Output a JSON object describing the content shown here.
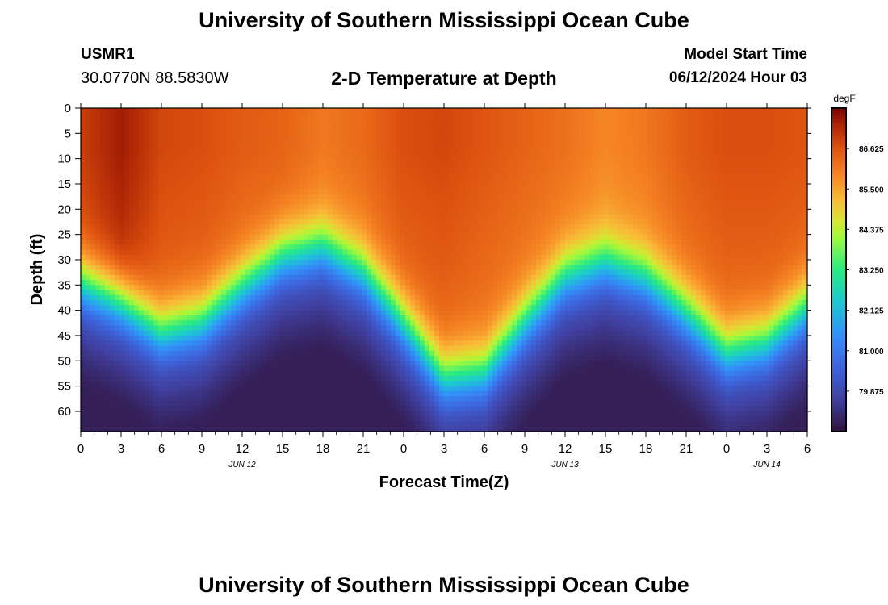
{
  "header": {
    "title": "University of Southern Mississippi Ocean Cube",
    "station_id": "USMR1",
    "coordinates": "30.0770N  88.5830W",
    "subtitle": "2-D Temperature at Depth",
    "model_start_label": "Model Start Time",
    "model_start_value": "06/12/2024 Hour 03"
  },
  "footer": {
    "title": "University of Southern Mississippi Ocean Cube"
  },
  "colors": {
    "background": "#ffffff",
    "text": "#000000"
  },
  "chart_data": {
    "type": "heatmap",
    "title": "2-D Temperature at Depth",
    "xlabel": "Forecast Time(Z)",
    "ylabel": "Depth (ft)",
    "x_range_hours": [
      0,
      54
    ],
    "y_range_ft": [
      0,
      64
    ],
    "x_tick_hours": [
      0,
      3,
      6,
      9,
      12,
      15,
      18,
      21,
      24,
      27,
      30,
      33,
      36,
      39,
      42,
      45,
      48,
      51,
      54
    ],
    "x_tick_labels": [
      "0",
      "3",
      "6",
      "9",
      "12",
      "15",
      "18",
      "21",
      "0",
      "3",
      "6",
      "9",
      "12",
      "15",
      "18",
      "21",
      "0",
      "3",
      "6"
    ],
    "y_ticks": [
      0,
      5,
      10,
      15,
      20,
      25,
      30,
      35,
      40,
      45,
      50,
      55,
      60
    ],
    "y_tick_labels": [
      "0",
      "5",
      "10",
      "15",
      "20",
      "25",
      "30",
      "35",
      "40",
      "45",
      "50",
      "55",
      "60"
    ],
    "date_labels": [
      {
        "hour": 12,
        "label": "JUN 12"
      },
      {
        "hour": 36,
        "label": "JUN 13"
      },
      {
        "hour": 51,
        "label": "JUN 14"
      }
    ],
    "colorbar": {
      "unit": "degF",
      "range": [
        78.75,
        87.75
      ],
      "ticks": [
        79.875,
        81.0,
        82.125,
        83.25,
        84.375,
        85.5,
        86.625
      ],
      "tick_labels": [
        "79.875",
        "81.000",
        "82.125",
        "83.250",
        "84.375",
        "85.500",
        "86.625"
      ]
    },
    "series": [
      {
        "name": "surface_temp_degF",
        "hours": [
          0,
          3,
          6,
          9,
          12,
          15,
          18,
          21,
          24,
          27,
          30,
          33,
          36,
          39,
          42,
          45,
          48,
          51,
          54
        ],
        "values": [
          86.9,
          87.4,
          86.8,
          86.7,
          86.5,
          86.4,
          86.1,
          86.3,
          86.7,
          86.8,
          86.6,
          86.4,
          86.2,
          85.9,
          86.1,
          86.5,
          86.7,
          86.7,
          86.6
        ]
      },
      {
        "name": "thermocline_depth_ft",
        "hours": [
          0,
          3,
          6,
          9,
          12,
          15,
          18,
          21,
          24,
          27,
          30,
          33,
          36,
          39,
          42,
          45,
          48,
          51,
          54
        ],
        "values": [
          34,
          38,
          44,
          42,
          35,
          29,
          27,
          32,
          42,
          53,
          52,
          42,
          33,
          30,
          33,
          40,
          48,
          46,
          39
        ]
      }
    ],
    "bottom_temp_degF": 79.0
  }
}
